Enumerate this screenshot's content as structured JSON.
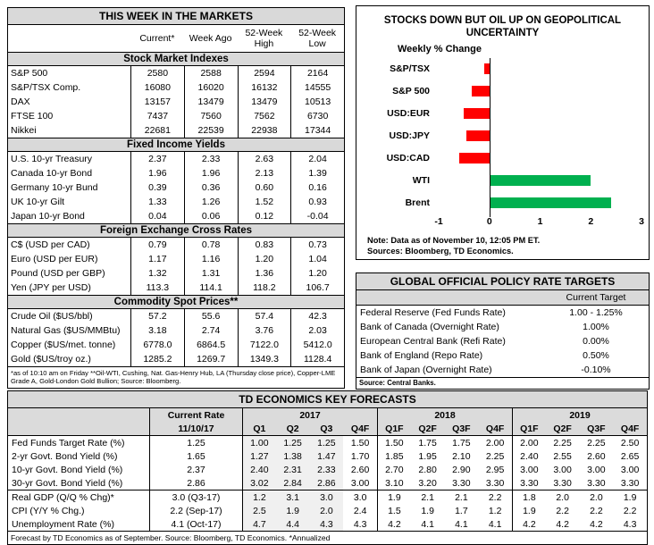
{
  "markets_table": {
    "title": "THIS WEEK IN THE MARKETS",
    "col_headers": [
      "Current*",
      "Week Ago",
      "52-Week High",
      "52-Week Low"
    ],
    "sections": [
      {
        "header": "Stock Market Indexes",
        "rows": [
          [
            "S&P 500",
            "2580",
            "2588",
            "2594",
            "2164"
          ],
          [
            "S&P/TSX Comp.",
            "16080",
            "16020",
            "16132",
            "14555"
          ],
          [
            "DAX",
            "13157",
            "13479",
            "13479",
            "10513"
          ],
          [
            "FTSE 100",
            "7437",
            "7560",
            "7562",
            "6730"
          ],
          [
            "Nikkei",
            "22681",
            "22539",
            "22938",
            "17344"
          ]
        ]
      },
      {
        "header": "Fixed Income Yields",
        "rows": [
          [
            "U.S. 10-yr Treasury",
            "2.37",
            "2.33",
            "2.63",
            "2.04"
          ],
          [
            "Canada 10-yr Bond",
            "1.96",
            "1.96",
            "2.13",
            "1.39"
          ],
          [
            "Germany 10-yr Bund",
            "0.39",
            "0.36",
            "0.60",
            "0.16"
          ],
          [
            "UK 10-yr Gilt",
            "1.33",
            "1.26",
            "1.52",
            "0.93"
          ],
          [
            "Japan 10-yr Bond",
            "0.04",
            "0.06",
            "0.12",
            "-0.04"
          ]
        ]
      },
      {
        "header": "Foreign Exchange Cross Rates",
        "rows": [
          [
            "C$ (USD per CAD)",
            "0.79",
            "0.78",
            "0.83",
            "0.73"
          ],
          [
            "Euro (USD per EUR)",
            "1.17",
            "1.16",
            "1.20",
            "1.04"
          ],
          [
            "Pound (USD per GBP)",
            "1.32",
            "1.31",
            "1.36",
            "1.20"
          ],
          [
            "Yen (JPY per USD)",
            "113.3",
            "114.1",
            "118.2",
            "106.7"
          ]
        ]
      },
      {
        "header": "Commodity Spot Prices**",
        "rows": [
          [
            "Crude Oil ($US/bbl)",
            "57.2",
            "55.6",
            "57.4",
            "42.3"
          ],
          [
            "Natural Gas ($US/MMBtu)",
            "3.18",
            "2.74",
            "3.76",
            "2.03"
          ],
          [
            "Copper ($US/met. tonne)",
            "6778.0",
            "6864.5",
            "7122.0",
            "5412.0"
          ],
          [
            "Gold ($US/troy oz.)",
            "1285.2",
            "1269.7",
            "1349.3",
            "1128.4"
          ]
        ]
      }
    ],
    "footnote": "*as of 10:10 am on Friday **Oil-WTI, Cushing, Nat. Gas-Henry Hub, LA (Thursday close price), Copper-LME Grade A, Gold-London Gold Bullion; Source: Bloomberg."
  },
  "chart_data": {
    "type": "bar",
    "orientation": "horizontal",
    "title": "STOCKS DOWN BUT OIL UP ON GEOPOLITICAL UNCERTAINTY",
    "axis_label": "Weekly % Change",
    "categories": [
      "S&P/TSX",
      "S&P 500",
      "USD:EUR",
      "USD:JPY",
      "USD:CAD",
      "WTI",
      "Brent"
    ],
    "values": [
      -0.1,
      -0.35,
      -0.5,
      -0.45,
      -0.6,
      2.0,
      2.4
    ],
    "xlim": [
      -1,
      3
    ],
    "xticks": [
      -1,
      0,
      1,
      2,
      3
    ],
    "negative_color": "#ff0000",
    "positive_color": "#00b04f",
    "grid": false,
    "note_lines": [
      "Note: Data as of November 10, 12:05 PM ET.",
      "Sources: Bloomberg, TD Economics."
    ]
  },
  "policy_table": {
    "title": "GLOBAL OFFICIAL POLICY RATE TARGETS",
    "col_header": "Current Target",
    "rows": [
      [
        "Federal Reserve (Fed Funds Rate)",
        "1.00 - 1.25%"
      ],
      [
        "Bank of Canada (Overnight Rate)",
        "1.00%"
      ],
      [
        "European Central Bank (Refi Rate)",
        "0.00%"
      ],
      [
        "Bank of England (Repo Rate)",
        "0.50%"
      ],
      [
        "Bank of Japan (Overnight Rate)",
        "-0.10%"
      ]
    ],
    "source": "Source: Central Banks."
  },
  "forecasts_table": {
    "title": "TD ECONOMICS KEY FORECASTS",
    "current_header": [
      "Current Rate",
      "11/10/17"
    ],
    "year_groups": [
      {
        "year": "2017",
        "quarters": [
          "Q1",
          "Q2",
          "Q3",
          "Q4F"
        ]
      },
      {
        "year": "2018",
        "quarters": [
          "Q1F",
          "Q2F",
          "Q3F",
          "Q4F"
        ]
      },
      {
        "year": "2019",
        "quarters": [
          "Q1F",
          "Q2F",
          "Q3F",
          "Q4F"
        ]
      }
    ],
    "shaded_quarter_indexes": [
      0,
      1,
      2
    ],
    "rows": [
      {
        "label": "Fed Funds Target Rate (%)",
        "current": "1.25",
        "values": [
          "1.00",
          "1.25",
          "1.25",
          "1.50",
          "1.50",
          "1.75",
          "1.75",
          "2.00",
          "2.00",
          "2.25",
          "2.25",
          "2.50"
        ]
      },
      {
        "label": "2-yr Govt. Bond Yield (%)",
        "current": "1.65",
        "values": [
          "1.27",
          "1.38",
          "1.47",
          "1.70",
          "1.85",
          "1.95",
          "2.10",
          "2.25",
          "2.40",
          "2.55",
          "2.60",
          "2.65"
        ]
      },
      {
        "label": "10-yr Govt. Bond Yield (%)",
        "current": "2.37",
        "values": [
          "2.40",
          "2.31",
          "2.33",
          "2.60",
          "2.70",
          "2.80",
          "2.90",
          "2.95",
          "3.00",
          "3.00",
          "3.00",
          "3.00"
        ]
      },
      {
        "label": "30-yr Govt. Bond Yield (%)",
        "current": "2.86",
        "values": [
          "3.02",
          "2.84",
          "2.86",
          "3.00",
          "3.10",
          "3.20",
          "3.30",
          "3.30",
          "3.30",
          "3.30",
          "3.30",
          "3.30"
        ]
      },
      {
        "label": "Real GDP (Q/Q % Chg)*",
        "current": "3.0 (Q3-17)",
        "section_start": true,
        "values": [
          "1.2",
          "3.1",
          "3.0",
          "3.0",
          "1.9",
          "2.1",
          "2.1",
          "2.2",
          "1.8",
          "2.0",
          "2.0",
          "1.9"
        ]
      },
      {
        "label": "CPI (Y/Y % Chg.)",
        "current": "2.2 (Sep-17)",
        "values": [
          "2.5",
          "1.9",
          "2.0",
          "2.4",
          "1.5",
          "1.9",
          "1.7",
          "1.2",
          "1.9",
          "2.2",
          "2.2",
          "2.2"
        ]
      },
      {
        "label": "Unemployment Rate (%)",
        "current": "4.1 (Oct-17)",
        "values": [
          "4.7",
          "4.4",
          "4.3",
          "4.3",
          "4.2",
          "4.1",
          "4.1",
          "4.1",
          "4.2",
          "4.2",
          "4.2",
          "4.3"
        ]
      }
    ],
    "footer": "Forecast by TD Economics as of September. Source: Bloomberg, TD Economics. *Annualized"
  }
}
